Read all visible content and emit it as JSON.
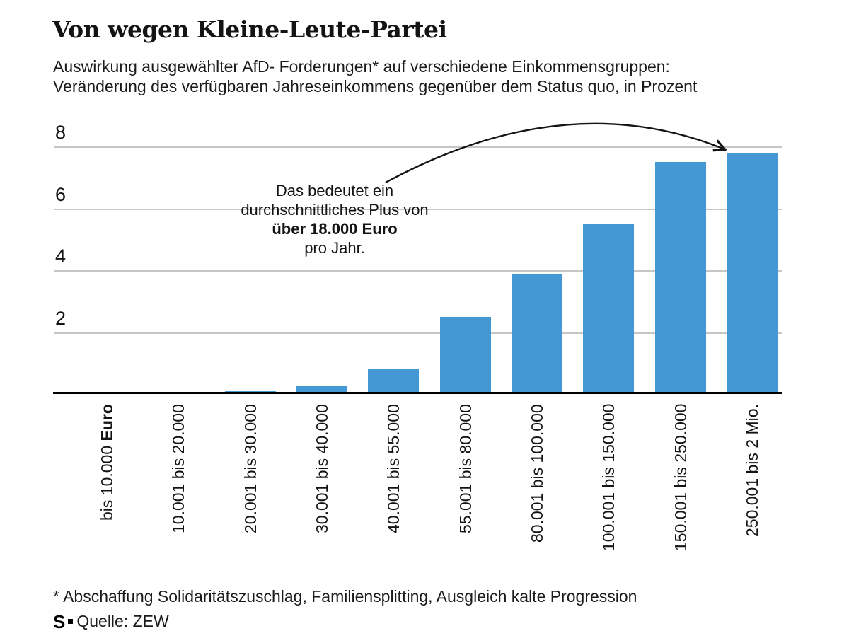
{
  "header": {
    "title": "Von wegen Kleine-Leute-Partei",
    "subtitle_line1": "Auswirkung ausgewählter AfD- Forderungen* auf verschiedene Einkommensgruppen:",
    "subtitle_line2": "Veränderung des verfügbaren Jahreseinkommens gegenüber dem Status quo, in Prozent"
  },
  "chart_data": {
    "type": "bar",
    "title": "Von wegen Kleine-Leute-Partei",
    "subtitle": "Auswirkung ausgewählter AfD- Forderungen* auf verschiedene Einkommensgruppen: Veränderung des verfügbaren Jahreseinkommens gegenüber dem Status quo, in Prozent",
    "categories": [
      {
        "text": "bis 10.000 ",
        "bold": "Euro"
      },
      {
        "text": "10.001 bis 20.000",
        "bold": ""
      },
      {
        "text": "20.001 bis 30.000",
        "bold": ""
      },
      {
        "text": "30.001 bis 40.000",
        "bold": ""
      },
      {
        "text": "40.001 bis 55.000",
        "bold": ""
      },
      {
        "text": "55.001 bis 80.000",
        "bold": ""
      },
      {
        "text": "80.001 bis 100.000",
        "bold": ""
      },
      {
        "text": "100.001 bis 150.000",
        "bold": ""
      },
      {
        "text": "150.001 bis 250.000",
        "bold": ""
      },
      {
        "text": "250.001 bis 2 Mio.",
        "bold": ""
      }
    ],
    "values": [
      0,
      0,
      0.1,
      0.25,
      0.8,
      2.5,
      3.9,
      5.5,
      7.5,
      7.8
    ],
    "unit": "Prozent",
    "xlabel": "",
    "ylabel": "Veränderung des verfügbaren Jahreseinkommens in Prozent",
    "yticks": [
      2,
      4,
      6,
      8
    ],
    "ylim": [
      0,
      9
    ],
    "grid": true,
    "legend_position": "none",
    "bar_color": "#4499d4",
    "gridline_color": "#c6c6c6",
    "axis_color": "#000000"
  },
  "annotation": {
    "line1": "Das bedeutet ein",
    "line2": "durchschnittliches Plus von",
    "line3": "über 18.000 Euro",
    "line4": "pro Jahr."
  },
  "footer": {
    "footnote": "* Abschaffung Solidaritätszuschlag, Familiensplitting, Ausgleich kalte Progression",
    "source_logo": "S",
    "source": "Quelle: ZEW"
  }
}
